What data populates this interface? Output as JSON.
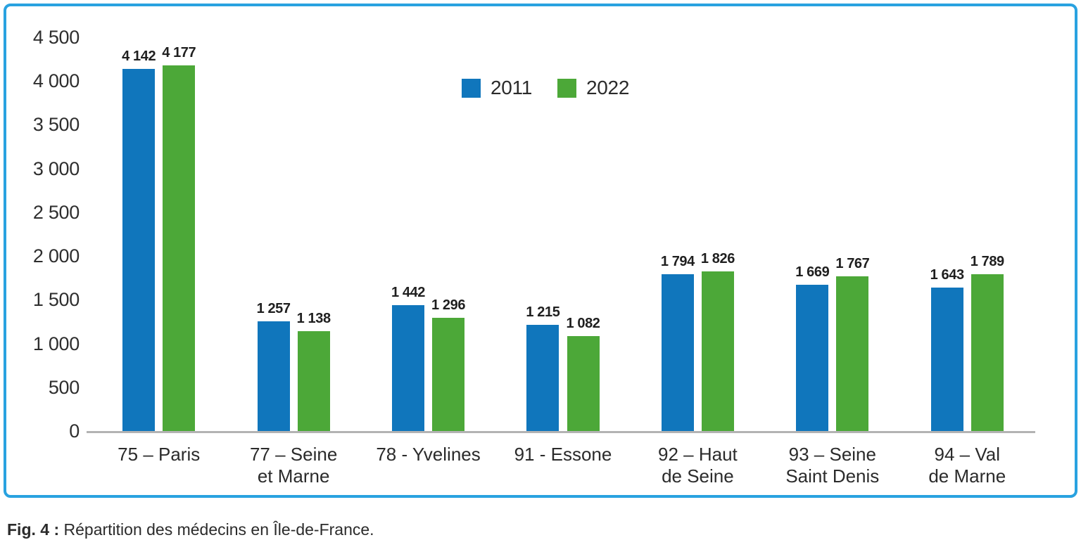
{
  "figure": {
    "caption_prefix": "Fig. 4 :",
    "caption_text": " Répartition des médecins en Île-de-France."
  },
  "colors": {
    "series_2011": "#1076bc",
    "series_2022": "#4ca838",
    "card_border": "#29a2e0",
    "axis_line": "#b3b3b3",
    "text": "#2b2b2b"
  },
  "chart_data": {
    "type": "bar",
    "title": "",
    "xlabel": "",
    "ylabel": "",
    "ylim": [
      0,
      4500
    ],
    "ytick_step": 500,
    "yticks": [
      "4 500",
      "4 000",
      "3 500",
      "3 000",
      "2 500",
      "2 000",
      "1 500",
      "1 000",
      "500",
      "0"
    ],
    "grid": false,
    "legend_position": "top-center",
    "categories": [
      {
        "label": "75 – Paris"
      },
      {
        "label": "77 – Seine\net Marne"
      },
      {
        "label": "78 - Yvelines"
      },
      {
        "label": "91 - Essone"
      },
      {
        "label": "92 – Haut\nde Seine"
      },
      {
        "label": "93 – Seine\nSaint Denis"
      },
      {
        "label": "94 – Val\nde Marne"
      }
    ],
    "series": [
      {
        "name": "2011",
        "color": "#1076bc",
        "values": [
          4142,
          1257,
          1442,
          1215,
          1794,
          1669,
          1643
        ],
        "labels": [
          "4 142",
          "1 257",
          "1 442",
          "1 215",
          "1 794",
          "1 669",
          "1 643"
        ]
      },
      {
        "name": "2022",
        "color": "#4ca838",
        "values": [
          4177,
          1138,
          1296,
          1082,
          1826,
          1767,
          1789
        ],
        "labels": [
          "4 177",
          "1 138",
          "1 296",
          "1 082",
          "1 826",
          "1 767",
          "1 789"
        ]
      }
    ]
  }
}
